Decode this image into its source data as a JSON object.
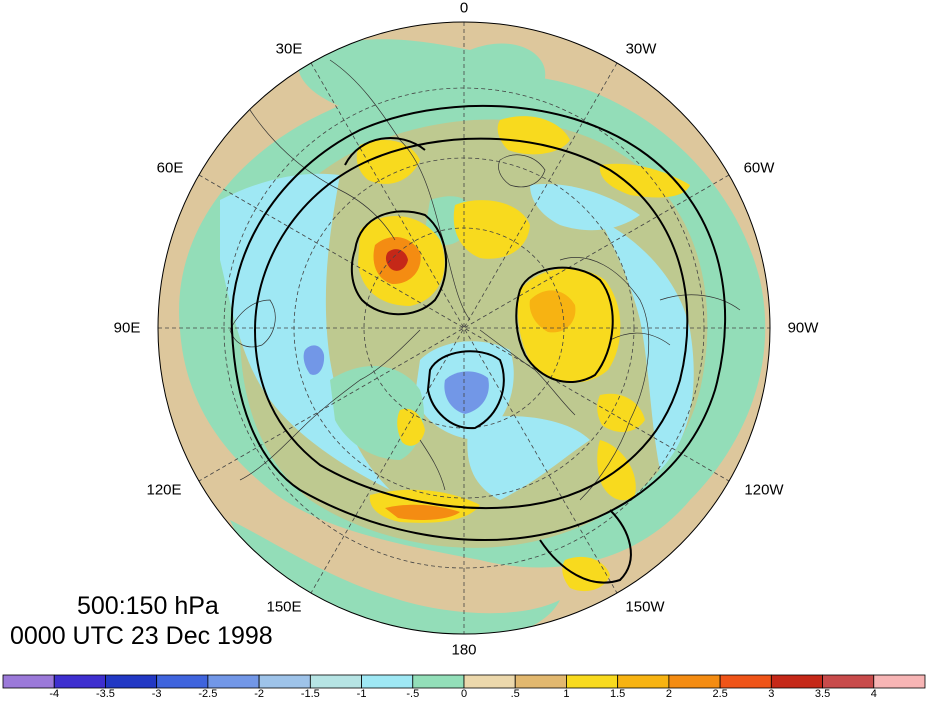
{
  "map": {
    "projection": "north polar stereographic",
    "longitude_labels": {
      "lon_0": "0",
      "lon_30w": "30W",
      "lon_60w": "60W",
      "lon_90w": "90W",
      "lon_120w": "120W",
      "lon_150w": "150W",
      "lon_180": "180",
      "lon_150e": "150E",
      "lon_120e": "120E",
      "lon_90e": "90E",
      "lon_60e": "60E",
      "lon_30e": "30E"
    },
    "caption_levels": "500:150 hPa",
    "caption_time": "0000 UTC 23 Dec 1998"
  },
  "colorbar": {
    "tick_labels": [
      "-4",
      "-3.5",
      "-3",
      "-2.5",
      "-2",
      "-1.5",
      "-1",
      "-.5",
      "0",
      ".5",
      "1",
      "1.5",
      "2",
      "2.5",
      "3",
      "3.5",
      "4"
    ],
    "colors": [
      "#9b79d9",
      "#3e2fcf",
      "#2238c4",
      "#3f64dd",
      "#7297e7",
      "#9ec3e9",
      "#b6e4e4",
      "#9fe8f4",
      "#93dfb9",
      "#ecd8ac",
      "#e2b86f",
      "#f8da1e",
      "#f7b312",
      "#f48c12",
      "#ef5418",
      "#c52818",
      "#c84b4b",
      "#f7b5b5"
    ],
    "land_color": "#e9d3a4",
    "ocean_color": "#93ddb8"
  }
}
